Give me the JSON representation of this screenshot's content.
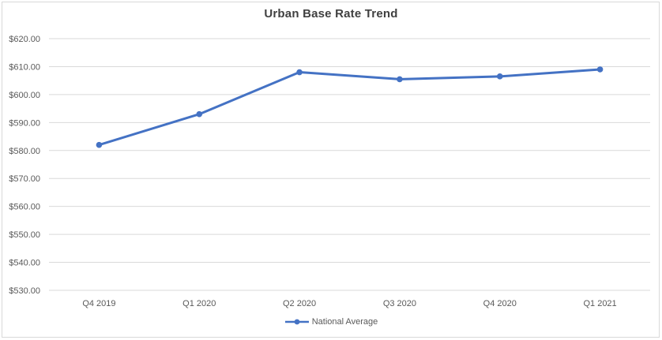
{
  "chart": {
    "title": "Urban Base Rate Trend",
    "legend": {
      "label": "National Average"
    }
  },
  "chart_data": {
    "type": "line",
    "title": "Urban Base Rate Trend",
    "categories": [
      "Q4 2019",
      "Q1 2020",
      "Q2 2020",
      "Q3 2020",
      "Q4 2020",
      "Q1 2021"
    ],
    "series": [
      {
        "name": "National Average",
        "values": [
          582,
          593,
          608,
          605.5,
          606.5,
          609
        ]
      }
    ],
    "xlabel": "",
    "ylabel": "",
    "ylim": [
      530,
      620
    ],
    "y_tick_step": 10,
    "y_tick_labels": [
      "$530.00",
      "$540.00",
      "$550.00",
      "$560.00",
      "$570.00",
      "$580.00",
      "$590.00",
      "$600.00",
      "$610.00",
      "$620.00"
    ],
    "grid": true,
    "legend_position": "bottom-center",
    "colors": {
      "series": "#4472C4",
      "gridline": "#D9D9D9",
      "border": "#D9D9D9",
      "axis_text": "#595959",
      "title_text": "#404040",
      "background": "#FFFFFF"
    }
  }
}
